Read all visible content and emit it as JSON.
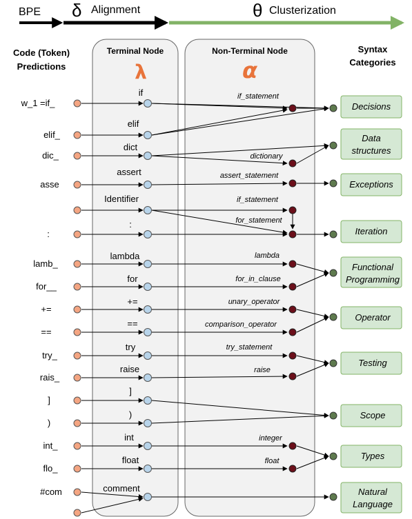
{
  "header": {
    "bpe": "BPE",
    "delta": "δ",
    "alignment": "Alignment",
    "theta": "θ",
    "clusterization": "Clusterization"
  },
  "columns": {
    "code": [
      "Code (Token)",
      "Predictions"
    ],
    "terminal": "Terminal Node",
    "lambda": "λ",
    "nonterminal": "Non-Terminal  Node",
    "alpha": "α",
    "syntax": [
      "Syntax",
      "Categories"
    ]
  },
  "tokens": [
    "w_1 =if_",
    "elif_",
    "dic_",
    "asse",
    "",
    ":",
    "lamb_",
    "for__",
    "+=",
    "==",
    "try_",
    "rais_",
    "]",
    ")",
    "int_",
    "flo_",
    "#com",
    ""
  ],
  "terminals": [
    "if",
    "elif",
    "dict",
    "assert",
    "Identifier",
    ":",
    "lambda",
    "for",
    "+=",
    "==",
    "try",
    "raise",
    "]",
    ")",
    "int",
    "float",
    "comment"
  ],
  "nonterminals": [
    "if_statement",
    "dictionary",
    "assert_statement",
    "if_statement",
    "for_statement",
    "lambda",
    "for_in_clause",
    "unary_operator",
    "comparison_operator",
    "try_statement",
    "raise",
    "integer",
    "float"
  ],
  "categories": [
    [
      "Decisions"
    ],
    [
      "Data",
      "structures"
    ],
    [
      "Exceptions"
    ],
    [
      "Iteration"
    ],
    [
      "Functional",
      "Programming"
    ],
    [
      "Operator"
    ],
    [
      "Testing"
    ],
    [
      "Scope"
    ],
    [
      "Types"
    ],
    [
      "Natural",
      "Language"
    ]
  ],
  "colors": {
    "token_node": "#f4a582",
    "terminal_node": "#b8d4ea",
    "nonterminal_node": "#6b0f1a",
    "category_node": "#5e7a4e",
    "category_box": "#d5e8d4",
    "category_border": "#82b366",
    "panel": "#f2f2f2",
    "lambda": "#e8743b",
    "alpha": "#e8743b",
    "green_arrow": "#82b366"
  }
}
